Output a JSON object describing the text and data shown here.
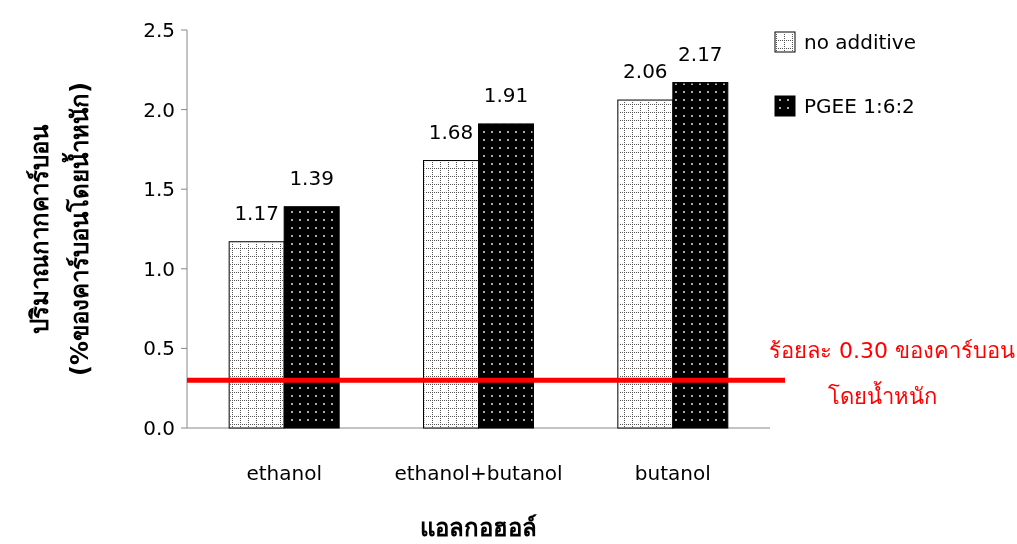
{
  "chart_data": {
    "type": "bar",
    "xlabel": "แอลกอฮอล์",
    "ylabel": "ปริมาณกากคาร์บอน\n(%ของคาร์บอนโดยน้ำหนัก)",
    "categories": [
      "ethanol",
      "ethanol+butanol",
      "butanol"
    ],
    "series": [
      {
        "name": "no additive",
        "color": "#ffffff",
        "values": [
          1.17,
          1.68,
          2.06
        ]
      },
      {
        "name": "PGEE 1:6:2",
        "color": "#000000",
        "values": [
          1.39,
          1.91,
          2.17
        ]
      }
    ],
    "ylim": [
      0,
      2.5
    ],
    "yticks": [
      {
        "value": 0,
        "label": "0.0"
      },
      {
        "value": 0.5,
        "label": "0.5"
      },
      {
        "value": 1,
        "label": "1.0"
      },
      {
        "value": 1.5,
        "label": "1.5"
      },
      {
        "value": 2,
        "label": "2.0"
      },
      {
        "value": 2.5,
        "label": "2.5"
      }
    ],
    "ref_lines": [
      {
        "axis": "y",
        "value": 0.3,
        "label": "ร้อยละ 0.30 ของคาร์บอน\nโดยน้ำหนัก",
        "color": "#ff0000"
      }
    ],
    "data_labels": true,
    "legend": "top right",
    "grid": false
  }
}
